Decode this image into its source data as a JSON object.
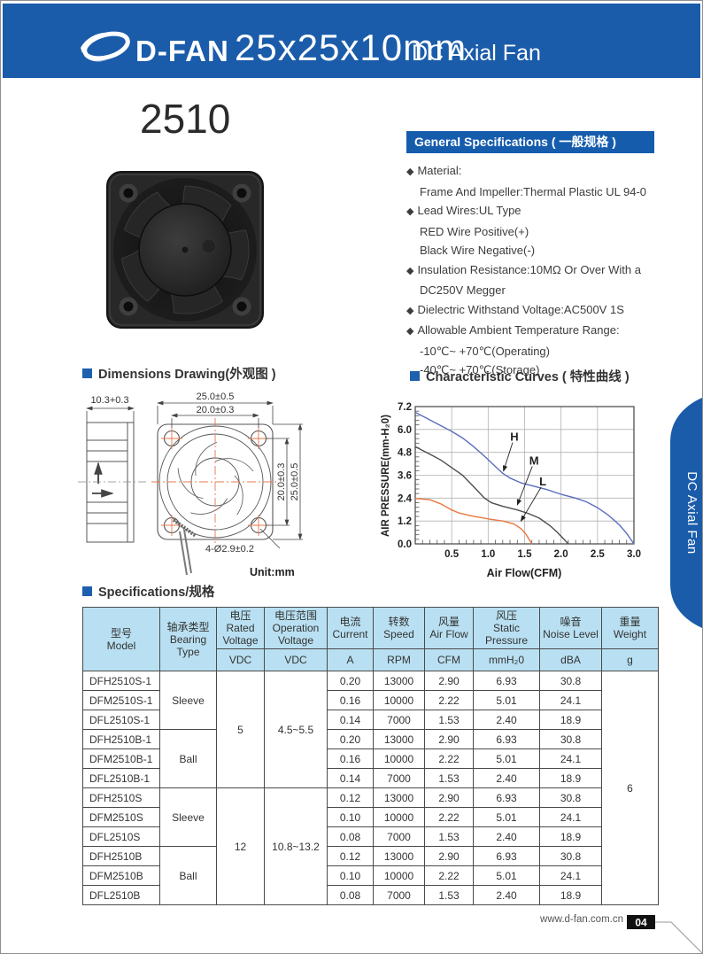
{
  "header": {
    "brand": "D-FAN",
    "title": "25x25x10mm",
    "subtitle": "DC Axial Fan",
    "bg_color": "#1a5caa",
    "logo_icon": "swoosh-ellipse-logo"
  },
  "product": {
    "model_heading": "2510"
  },
  "general_specs": {
    "title": "General Specifications ( 一般规格 )",
    "items": [
      {
        "bullet": true,
        "text": "Material:"
      },
      {
        "bullet": false,
        "text": "Frame And Impeller:Thermal Plastic UL 94-0"
      },
      {
        "bullet": true,
        "text": "Lead Wires:UL Type"
      },
      {
        "bullet": false,
        "text": "RED Wire Positive(+)"
      },
      {
        "bullet": false,
        "text": "Black Wire Negative(-)"
      },
      {
        "bullet": true,
        "text": "Insulation Resistance:10MΩ Or Over With a"
      },
      {
        "bullet": false,
        "text": "DC250V Megger"
      },
      {
        "bullet": true,
        "text": "Dielectric Withstand Voltage:AC500V 1S"
      },
      {
        "bullet": true,
        "text": "Allowable Ambient Temperature Range:"
      },
      {
        "bullet": false,
        "text": "-10℃~ +70℃(Operating)"
      },
      {
        "bullet": false,
        "text": "-40℃~ +70℃(Storage)"
      }
    ]
  },
  "dimensions": {
    "title": "Dimensions Drawing(外观图 )",
    "labels": {
      "side_depth": "10.3+0.3",
      "outer_width": "25.0±0.5",
      "hole_pitch_h": "20.0±0.3",
      "hole_pitch_v": "20.0±0.3",
      "outer_height": "25.0±0.5",
      "hole_callout": "4-Ø2.9±0.2",
      "unit": "Unit:mm"
    }
  },
  "curves_section": {
    "title": "Characteristic Curves ( 特性曲线 )"
  },
  "chart_data": {
    "type": "line",
    "title": "Characteristic Curves ( 特性曲线 )",
    "xlabel": "Air Flow(CFM)",
    "ylabel": "AIR PRESSURE(mm-H₂0)",
    "xlim": [
      0,
      3.0
    ],
    "ylim": [
      0,
      7.2
    ],
    "grid": true,
    "x_ticks": [
      0.5,
      1.0,
      1.5,
      2.0,
      2.5,
      3.0
    ],
    "x_tick_labels": [
      "0.5",
      "1.0",
      "1.5",
      "2.0",
      "2.5",
      "3.0"
    ],
    "y_ticks": [
      0.0,
      1.2,
      2.4,
      3.6,
      4.8,
      6.0,
      7.2
    ],
    "y_tick_labels": [
      "0.0",
      "1.2",
      "2.4",
      "3.6",
      "4.8",
      "6.0",
      "7.2"
    ],
    "x_minor_step": 0.1,
    "y_minor_step": 0.24,
    "series": [
      {
        "name": "H",
        "color": "#5a6ec0",
        "points": [
          [
            0,
            6.9
          ],
          [
            0.15,
            6.6
          ],
          [
            0.3,
            6.3
          ],
          [
            0.5,
            5.9
          ],
          [
            0.65,
            5.55
          ],
          [
            0.8,
            5.1
          ],
          [
            0.95,
            4.6
          ],
          [
            1.1,
            4.05
          ],
          [
            1.2,
            3.7
          ],
          [
            1.3,
            3.45
          ],
          [
            1.45,
            3.2
          ],
          [
            1.6,
            3.05
          ],
          [
            1.8,
            2.85
          ],
          [
            2.0,
            2.6
          ],
          [
            2.2,
            2.4
          ],
          [
            2.35,
            2.2
          ],
          [
            2.5,
            1.9
          ],
          [
            2.65,
            1.5
          ],
          [
            2.8,
            1.0
          ],
          [
            2.9,
            0.55
          ],
          [
            3.0,
            0.0
          ]
        ]
      },
      {
        "name": "M",
        "color": "#4d4d4d",
        "points": [
          [
            0,
            5.1
          ],
          [
            0.2,
            4.7
          ],
          [
            0.35,
            4.4
          ],
          [
            0.5,
            4.0
          ],
          [
            0.65,
            3.6
          ],
          [
            0.8,
            3.0
          ],
          [
            0.95,
            2.4
          ],
          [
            1.05,
            2.15
          ],
          [
            1.2,
            1.97
          ],
          [
            1.4,
            1.78
          ],
          [
            1.55,
            1.6
          ],
          [
            1.7,
            1.35
          ],
          [
            1.85,
            0.95
          ],
          [
            1.95,
            0.6
          ],
          [
            2.1,
            0.0
          ]
        ]
      },
      {
        "name": "L",
        "color": "#e87840",
        "points": [
          [
            0,
            2.38
          ],
          [
            0.2,
            2.32
          ],
          [
            0.35,
            2.1
          ],
          [
            0.5,
            1.78
          ],
          [
            0.6,
            1.62
          ],
          [
            0.75,
            1.48
          ],
          [
            0.9,
            1.38
          ],
          [
            1.05,
            1.28
          ],
          [
            1.2,
            1.2
          ],
          [
            1.35,
            1.05
          ],
          [
            1.45,
            0.8
          ],
          [
            1.52,
            0.5
          ],
          [
            1.6,
            0.0
          ]
        ]
      }
    ],
    "labels": [
      {
        "text": "H",
        "x": 1.36,
        "y": 5.55,
        "tip_x": 1.21,
        "tip_y": 3.72
      },
      {
        "text": "M",
        "x": 1.63,
        "y": 4.3,
        "tip_x": 1.4,
        "tip_y": 1.95
      },
      {
        "text": "L",
        "x": 1.75,
        "y": 3.2,
        "tip_x": 1.45,
        "tip_y": 1.1
      }
    ]
  },
  "side_tab": {
    "label": "DC Axial Fan",
    "bg_color": "#1a5caa"
  },
  "spec_table": {
    "section_title": "Specifications/规格",
    "header_bg": "#b9e0f2",
    "columns": [
      {
        "label": "型号\nModel",
        "unit": null
      },
      {
        "label": "轴承类型\nBearing\nType",
        "unit": null
      },
      {
        "label": "电压\nRated\nVoltage",
        "unit": "VDC"
      },
      {
        "label": "电压范围\nOperation\nVoltage",
        "unit": "VDC"
      },
      {
        "label": "电流\nCurrent",
        "unit": "A"
      },
      {
        "label": "转数\nSpeed",
        "unit": "RPM"
      },
      {
        "label": "风量\nAir Flow",
        "unit": "CFM"
      },
      {
        "label": "风压\nStatic\nPressure",
        "unit": "mmH₂0"
      },
      {
        "label": "噪音\nNoise Level",
        "unit": "dBA"
      },
      {
        "label": "重量\nWeight",
        "unit": "g"
      }
    ],
    "rows": [
      {
        "model": "DFH2510S-1",
        "current": "0.20",
        "speed": "13000",
        "air_flow": "2.90",
        "pressure": "6.93",
        "noise": "30.8"
      },
      {
        "model": "DFM2510S-1",
        "current": "0.16",
        "speed": "10000",
        "air_flow": "2.22",
        "pressure": "5.01",
        "noise": "24.1"
      },
      {
        "model": "DFL2510S-1",
        "current": "0.14",
        "speed": "7000",
        "air_flow": "1.53",
        "pressure": "2.40",
        "noise": "18.9"
      },
      {
        "model": "DFH2510B-1",
        "current": "0.20",
        "speed": "13000",
        "air_flow": "2.90",
        "pressure": "6.93",
        "noise": "30.8"
      },
      {
        "model": "DFM2510B-1",
        "current": "0.16",
        "speed": "10000",
        "air_flow": "2.22",
        "pressure": "5.01",
        "noise": "24.1"
      },
      {
        "model": "DFL2510B-1",
        "current": "0.14",
        "speed": "7000",
        "air_flow": "1.53",
        "pressure": "2.40",
        "noise": "18.9"
      },
      {
        "model": "DFH2510S",
        "current": "0.12",
        "speed": "13000",
        "air_flow": "2.90",
        "pressure": "6.93",
        "noise": "30.8"
      },
      {
        "model": "DFM2510S",
        "current": "0.10",
        "speed": "10000",
        "air_flow": "2.22",
        "pressure": "5.01",
        "noise": "24.1"
      },
      {
        "model": "DFL2510S",
        "current": "0.08",
        "speed": "7000",
        "air_flow": "1.53",
        "pressure": "2.40",
        "noise": "18.9"
      },
      {
        "model": "DFH2510B",
        "current": "0.12",
        "speed": "13000",
        "air_flow": "2.90",
        "pressure": "6.93",
        "noise": "30.8"
      },
      {
        "model": "DFM2510B",
        "current": "0.10",
        "speed": "10000",
        "air_flow": "2.22",
        "pressure": "5.01",
        "noise": "24.1"
      },
      {
        "model": "DFL2510B",
        "current": "0.08",
        "speed": "7000",
        "air_flow": "1.53",
        "pressure": "2.40",
        "noise": "18.9"
      }
    ],
    "bearing_groups": [
      {
        "label": "Sleeve",
        "start": 0,
        "span": 3
      },
      {
        "label": "Ball",
        "start": 3,
        "span": 3
      },
      {
        "label": "Sleeve",
        "start": 6,
        "span": 3
      },
      {
        "label": "Ball",
        "start": 9,
        "span": 3
      }
    ],
    "voltage_groups": [
      {
        "rated": "5",
        "operation": "4.5~5.5",
        "start": 0,
        "span": 6
      },
      {
        "rated": "12",
        "operation": "10.8~13.2",
        "start": 6,
        "span": 6
      }
    ],
    "weight": "6"
  },
  "footer": {
    "website": "www.d-fan.com.cn",
    "page_number": "04"
  }
}
